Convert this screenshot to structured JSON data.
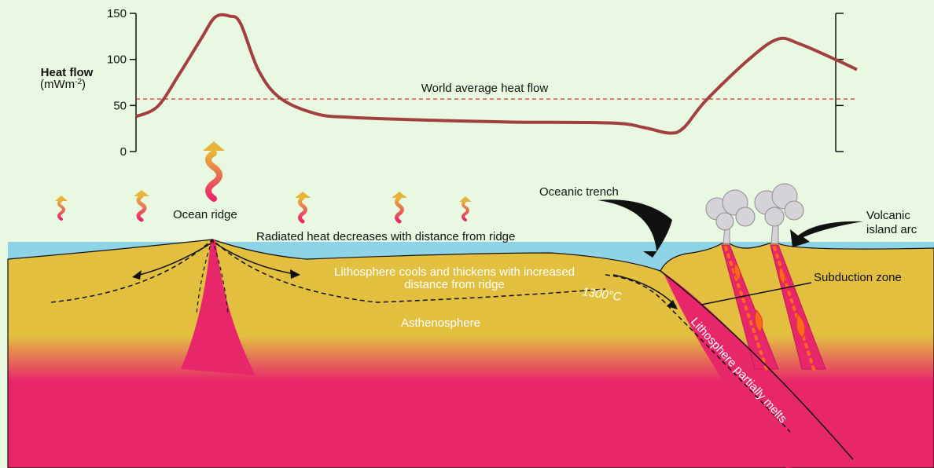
{
  "chart_data": {
    "type": "line",
    "y_label": "Heat flow",
    "y_unit": [
      "(mWm",
      "-2",
      ")"
    ],
    "x": [
      0,
      3,
      6,
      9,
      11,
      13,
      14.5,
      17,
      20,
      25,
      30,
      41,
      52,
      66,
      70.5,
      74,
      76,
      79,
      85,
      89,
      92,
      97,
      100
    ],
    "xlim": [
      0,
      100
    ],
    "series": [
      {
        "color": "#a3403f",
        "values": [
          38,
          49,
          84,
          122,
          146,
          147,
          139,
          88,
          58,
          41,
          37,
          34,
          32,
          31,
          26,
          20,
          26,
          55,
          100,
          122,
          117,
          100,
          89
        ]
      }
    ],
    "ylim": [
      0,
      150
    ],
    "yticks": [
      0,
      50,
      100,
      150
    ],
    "reference_line": {
      "value": 57,
      "label": "World average heat flow",
      "color": "#e0302c"
    }
  },
  "labels": {
    "ocean_ridge": "Ocean ridge",
    "radiated": "Radiated heat decreases with distance from ridge",
    "lithosphere": [
      "Lithosphere cools and thickens with increased",
      "distance from ridge"
    ],
    "temperature": "1300°C",
    "asthenosphere": "Asthenosphere",
    "trench": "Oceanic trench",
    "arc": [
      "Volcanic",
      "island arc"
    ],
    "subduction": "Subduction zone",
    "melts": "Lithosphere partially melts"
  }
}
